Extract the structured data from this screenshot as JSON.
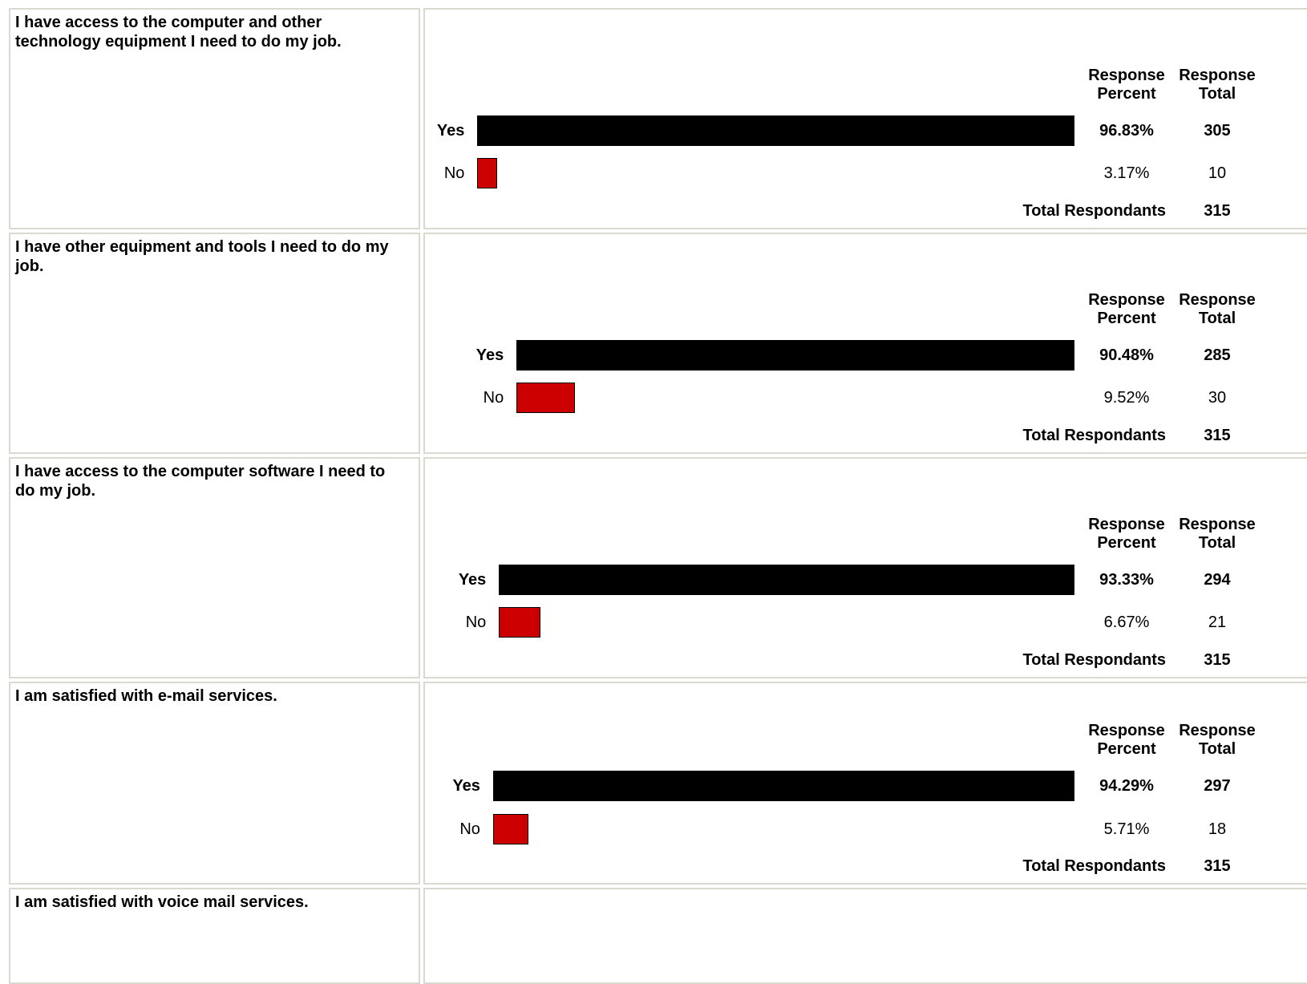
{
  "headers": {
    "percent": "Response Percent",
    "percent_l1": "Response",
    "percent_l2": "Percent",
    "total_l1": "Response",
    "total_l2": "Total"
  },
  "total_label": "Total Respondants",
  "chart_data": [
    {
      "type": "bar",
      "title": "I have access to the computer and other technology equipment I need to do my job.",
      "categories": [
        "Yes",
        "No"
      ],
      "values": [
        96.83,
        3.17
      ],
      "percent_labels": [
        "96.83%",
        "3.17%"
      ],
      "counts": [
        "305",
        "10"
      ],
      "total": "315",
      "colors": [
        "#000000",
        "#cc0000"
      ]
    },
    {
      "type": "bar",
      "title": "I have other equipment and tools I need to do my job.",
      "categories": [
        "Yes",
        "No"
      ],
      "values": [
        90.48,
        9.52
      ],
      "percent_labels": [
        "90.48%",
        "9.52%"
      ],
      "counts": [
        "285",
        "30"
      ],
      "total": "315",
      "colors": [
        "#000000",
        "#cc0000"
      ]
    },
    {
      "type": "bar",
      "title": "I have access to the computer software I need to do my job.",
      "categories": [
        "Yes",
        "No"
      ],
      "values": [
        93.33,
        6.67
      ],
      "percent_labels": [
        "93.33%",
        "6.67%"
      ],
      "counts": [
        "294",
        "21"
      ],
      "total": "315",
      "colors": [
        "#000000",
        "#cc0000"
      ]
    },
    {
      "type": "bar",
      "title": "I am satisfied with e-mail services.",
      "categories": [
        "Yes",
        "No"
      ],
      "values": [
        94.29,
        5.71
      ],
      "percent_labels": [
        "94.29%",
        "5.71%"
      ],
      "counts": [
        "297",
        "18"
      ],
      "total": "315",
      "colors": [
        "#000000",
        "#cc0000"
      ]
    },
    {
      "type": "bar",
      "title": "I am satisfied with voice mail services.",
      "categories": [],
      "values": []
    }
  ]
}
